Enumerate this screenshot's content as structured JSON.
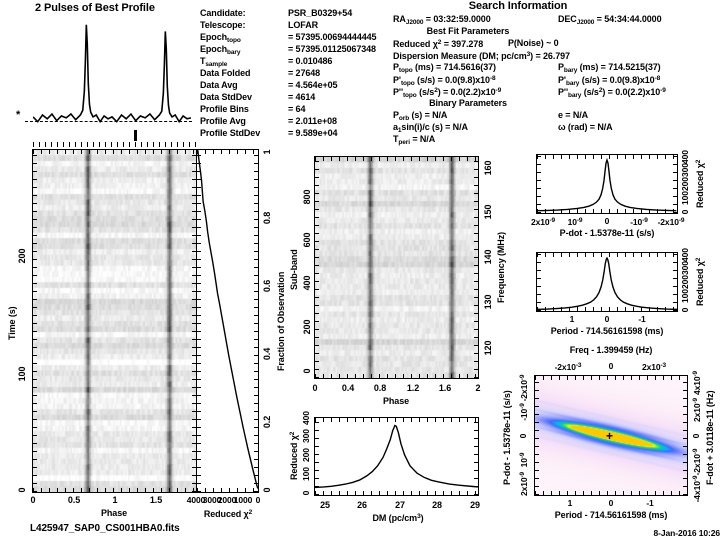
{
  "header": {
    "filename": "L425947_SAP0_CS001HBA0.fits",
    "datetime": "8-Jan-2016 10:26"
  },
  "candidate": {
    "rows": [
      {
        "label": "Candidate:",
        "value": "PSR_B0329+54"
      },
      {
        "label": "Telescope:",
        "value": "LOFAR"
      },
      {
        "label": "Epoch~topo~",
        "value": "= 57395.00694444445"
      },
      {
        "label": "Epoch~bary~",
        "value": "= 57395.01125067348"
      },
      {
        "label": "T~sample~",
        "value": "= 0.010486"
      },
      {
        "label": "Data Folded",
        "value": "= 27648"
      },
      {
        "label": "Data Avg",
        "value": "= 4.564e+05"
      },
      {
        "label": "Data StdDev",
        "value": "= 4614"
      },
      {
        "label": "Profile Bins",
        "value": "= 64"
      },
      {
        "label": "Profile Avg",
        "value": "= 2.011e+08"
      },
      {
        "label": "Profile StdDev",
        "value": "= 9.589e+04"
      }
    ]
  },
  "search": {
    "title": "Search Information",
    "ra": "RA~J2000~ = 03:32:59.0000",
    "dec": "DEC~J2000~ = 54:34:44.0000",
    "best_fit_title": "Best Fit Parameters",
    "reduced_chi2": "Reduced χ^2^ = 397.278",
    "pnoise": "P(Noise) ~ 0",
    "dm_line": "Dispersion Measure (DM; pc/cm^3^) = 26.797",
    "p_topo": "P~topo~ (ms) = 714.5616(37)",
    "p_bary": "P~bary~ (ms) = 714.5215(37)",
    "pd_topo": "P'~topo~ (s/s) = 0.0(9.8)x10^-8^",
    "pd_bary": "P'~bary~ (s/s) = 0.0(9.8)x10^-8^",
    "pdd_topo": "P''~topo~ (s/s^2^) = 0.0(2.2)x10^-9^",
    "pdd_bary": "P''~bary~ (s/s^2^) = 0.0(2.2)x10^-9^",
    "binary_title": "Binary Parameters",
    "porb": "P~orb~ (s) = N/A",
    "ecc": "e = N/A",
    "asini": "a~1~sin(i)/c (s) = N/A",
    "omega": "ω (rad) = N/A",
    "tperi": "T~peri~ = N/A"
  },
  "chart_data": [
    {
      "id": "profile",
      "type": "line",
      "title": "2 Pulses of Best Profile",
      "xlim": [
        0,
        2
      ],
      "ylim": [
        -0.15,
        1.05
      ],
      "x": [
        0,
        0.06,
        0.12,
        0.18,
        0.24,
        0.3,
        0.36,
        0.42,
        0.48,
        0.54,
        0.6,
        0.63,
        0.65,
        0.663,
        0.675,
        0.687,
        0.7,
        0.715,
        0.73,
        0.76,
        0.8,
        0.85,
        0.9,
        0.95,
        1.0,
        1.06,
        1.12,
        1.18,
        1.24,
        1.3,
        1.36,
        1.42,
        1.48,
        1.54,
        1.6,
        1.63,
        1.65,
        1.663,
        1.675,
        1.687,
        1.7,
        1.715,
        1.73,
        1.76,
        1.8,
        1.85,
        1.9,
        1.95,
        2.0
      ],
      "y": [
        0.03,
        -0.02,
        0.05,
        0.01,
        0.06,
        -0.01,
        0.04,
        0.02,
        0.06,
        0.0,
        0.05,
        0.1,
        0.3,
        0.62,
        1.0,
        0.8,
        0.38,
        0.16,
        0.08,
        0.03,
        0.05,
        -0.02,
        0.04,
        0.01,
        0.03,
        -0.02,
        0.05,
        0.01,
        0.06,
        -0.01,
        0.04,
        0.02,
        0.06,
        0.0,
        0.05,
        0.09,
        0.28,
        0.58,
        0.93,
        0.75,
        0.35,
        0.15,
        0.07,
        0.03,
        0.05,
        -0.02,
        0.04,
        0.01,
        0.02
      ]
    },
    {
      "id": "time_vs_phase",
      "type": "heatmap",
      "xlabel": "Phase",
      "ylabel": "Time (s)",
      "xlim": [
        0,
        2
      ],
      "ylim": [
        0,
        290
      ],
      "x_ticks": [
        "0",
        "0.5",
        "1",
        "1.5"
      ],
      "y_ticks": [
        "0",
        "100",
        "200"
      ],
      "pulse_phases": [
        0.675,
        1.675
      ]
    },
    {
      "id": "chi2_vs_fraction",
      "type": "line",
      "xlabel": "Reduced χ^2^",
      "ylabel": "Fraction of Observation",
      "xlim": [
        4000,
        0
      ],
      "ylim": [
        0,
        1
      ],
      "x_ticks": [
        "4000",
        "3000",
        "2000",
        "1000",
        "0"
      ],
      "y_ticks": [
        "0",
        "0.2",
        "0.4",
        "0.6",
        "0.8",
        "1"
      ],
      "x": [
        3950,
        3870,
        3780,
        3700,
        3650,
        3600,
        3480,
        3380,
        3300,
        3200,
        3080,
        2960,
        2850,
        2750,
        2650,
        2520,
        2400,
        2280,
        2160,
        2040,
        1920,
        1790,
        1660,
        1530,
        1400,
        1260,
        1120,
        980,
        830,
        680,
        520,
        360,
        190,
        80,
        10
      ],
      "y": [
        1.0,
        0.97,
        0.94,
        0.91,
        0.88,
        0.85,
        0.82,
        0.79,
        0.76,
        0.73,
        0.7,
        0.67,
        0.64,
        0.61,
        0.58,
        0.55,
        0.52,
        0.49,
        0.46,
        0.43,
        0.4,
        0.37,
        0.34,
        0.31,
        0.28,
        0.25,
        0.22,
        0.19,
        0.16,
        0.13,
        0.1,
        0.07,
        0.04,
        0.02,
        0.01
      ]
    },
    {
      "id": "subband_vs_phase",
      "type": "heatmap",
      "xlabel": "Phase",
      "ylabel": "Sub-band",
      "right_label": "Frequency (MHz)",
      "xlim": [
        0,
        2
      ],
      "ylim": [
        0,
        990
      ],
      "right_lim": [
        115,
        162
      ],
      "x_ticks": [
        "0",
        "0.4",
        "0.8",
        "1.2",
        "1.6",
        "2"
      ],
      "y_ticks": [
        "0",
        "200",
        "400",
        "600",
        "800"
      ],
      "right_ticks": [
        "120",
        "130",
        "140",
        "150",
        "160"
      ],
      "pulse_phases": [
        0.68,
        1.68
      ]
    },
    {
      "id": "chi2_vs_dm",
      "type": "line",
      "xlabel": "DM (pc/cm^3^)",
      "ylabel": "Reduced χ^2^",
      "xlim": [
        24.55,
        29.1
      ],
      "ylim": [
        0,
        460
      ],
      "peak_dm": 26.8,
      "x_ticks": [
        "25",
        "26",
        "27",
        "28",
        "29"
      ],
      "y_ticks": [
        "0",
        "100",
        "200",
        "300",
        "400"
      ],
      "x": [
        24.55,
        24.8,
        25.0,
        25.2,
        25.4,
        25.6,
        25.8,
        26.0,
        26.15,
        26.3,
        26.45,
        26.55,
        26.65,
        26.72,
        26.78,
        26.82,
        26.88,
        26.95,
        27.05,
        27.2,
        27.4,
        27.6,
        27.8,
        28.0,
        28.3,
        28.6,
        29.0,
        29.1
      ],
      "y": [
        45,
        48,
        52,
        58,
        65,
        75,
        90,
        115,
        140,
        175,
        225,
        275,
        330,
        385,
        415,
        410,
        370,
        305,
        240,
        175,
        130,
        105,
        88,
        78,
        65,
        58,
        50,
        48
      ]
    },
    {
      "id": "chi2_vs_pdot",
      "type": "line",
      "xlabel": "P-dot - 1.5378e-11 (s/s)",
      "ylabel": "Reduced χ^2^",
      "xlim": [
        2.12e-09,
        -2.12e-09
      ],
      "ylim": [
        0,
        460
      ],
      "x_ticks": [
        "2x10^-9^",
        "10^-9^",
        "0",
        "-10^-9^",
        "-2x10^-9^"
      ],
      "y_ticks": [
        "0",
        "100",
        "200",
        "300",
        "400"
      ],
      "x": [
        2.1e-09,
        1.8e-09,
        1.5e-09,
        1.2e-09,
        9e-10,
        7e-10,
        5.5e-10,
        4.2e-10,
        3.2e-10,
        2.4e-10,
        1.8e-10,
        1.3e-10,
        9e-11,
        6e-11,
        3e-11,
        0,
        -3e-11,
        -6e-11,
        -9e-11,
        -1.3e-10,
        -1.8e-10,
        -2.4e-10,
        -3.2e-10,
        -4.2e-10,
        -5.5e-10,
        -7e-10,
        -9e-10,
        -1.2e-09,
        -1.5e-09,
        -1.8e-09,
        -2.1e-09
      ],
      "y": [
        18,
        20,
        23,
        28,
        36,
        44,
        54,
        68,
        86,
        110,
        145,
        195,
        260,
        330,
        395,
        420,
        395,
        330,
        260,
        195,
        145,
        110,
        86,
        68,
        54,
        44,
        36,
        28,
        23,
        20,
        18
      ]
    },
    {
      "id": "chi2_vs_period",
      "type": "line",
      "xlabel": "Period - 714.56161598 (ms)",
      "ylabel": "Reduced χ^2^",
      "xlim": [
        2.0,
        -2.0
      ],
      "ylim": [
        0,
        460
      ],
      "x_ticks": [
        "1",
        "0",
        "-1"
      ],
      "y_ticks": [
        "0",
        "100",
        "200",
        "300",
        "400"
      ],
      "x": [
        2.0,
        1.7,
        1.45,
        1.2,
        1.0,
        0.85,
        0.7,
        0.58,
        0.47,
        0.38,
        0.3,
        0.23,
        0.17,
        0.12,
        0.08,
        0.05,
        0.02,
        0,
        -0.02,
        -0.05,
        -0.08,
        -0.12,
        -0.17,
        -0.23,
        -0.3,
        -0.38,
        -0.47,
        -0.58,
        -0.7,
        -0.85,
        -1.0,
        -1.2,
        -1.45,
        -1.7,
        -2.0
      ],
      "y": [
        13,
        15,
        19,
        24,
        30,
        37,
        46,
        57,
        70,
        88,
        112,
        145,
        190,
        248,
        315,
        375,
        410,
        420,
        410,
        375,
        315,
        248,
        190,
        145,
        112,
        88,
        70,
        57,
        46,
        37,
        30,
        24,
        19,
        15,
        13
      ]
    },
    {
      "id": "period_pdot_map",
      "type": "heatmap",
      "title": "Freq - 1.399459 (Hz)",
      "xlabel": "Period - 714.56161598 (ms)",
      "ylabel": "P-dot - 1.5378e-11 (s/s)",
      "right_label": "F-dot + 3.0118e-11 (Hz)",
      "xlim": [
        1.9,
        -1.9
      ],
      "ylim": [
        2.48e-09,
        -2.48e-09
      ],
      "top_ticks": [
        "-2x10^-3^",
        "0",
        "2x10^-3^"
      ],
      "x_ticks": [
        "1",
        "0",
        "-1"
      ],
      "y_ticks": [
        "2x10^-9^",
        "10^-9^",
        "0",
        "-10^-9^",
        "-2x10^-9^"
      ],
      "right_ticks": [
        "-4x10^-9^",
        "-2x10^-9^",
        "0",
        "2x10^-9^",
        "4x10^-9^"
      ],
      "best_marker": {
        "period_offset": 0,
        "pdot_offset": 0
      }
    }
  ]
}
